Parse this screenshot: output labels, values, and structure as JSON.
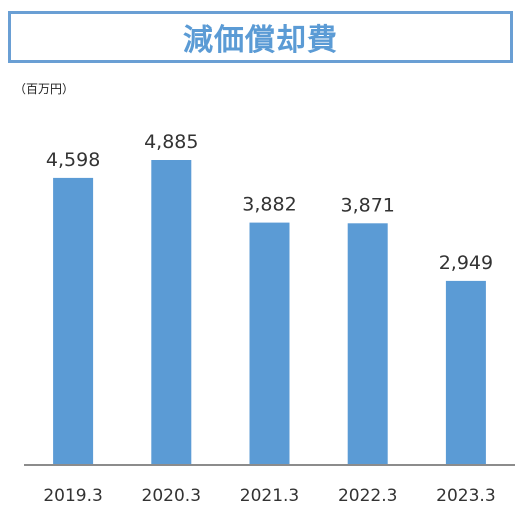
{
  "title": "減価償却費",
  "unit_label": "（百万円）",
  "colors": {
    "bar": "#5b9bd5",
    "title_border": "#6a9fd4",
    "axis": "#8c8c8c"
  },
  "chart_data": {
    "type": "bar",
    "categories": [
      "2019.3",
      "2020.3",
      "2021.3",
      "2022.3",
      "2023.3"
    ],
    "values": [
      4598,
      4885,
      3882,
      3871,
      2949
    ],
    "value_labels": [
      "4,598",
      "4,885",
      "3,882",
      "3,871",
      "2,949"
    ],
    "title": "減価償却費",
    "xlabel": "",
    "ylabel": "（百万円）",
    "ylim": [
      0,
      5200
    ],
    "grid": false,
    "legend": "none"
  }
}
